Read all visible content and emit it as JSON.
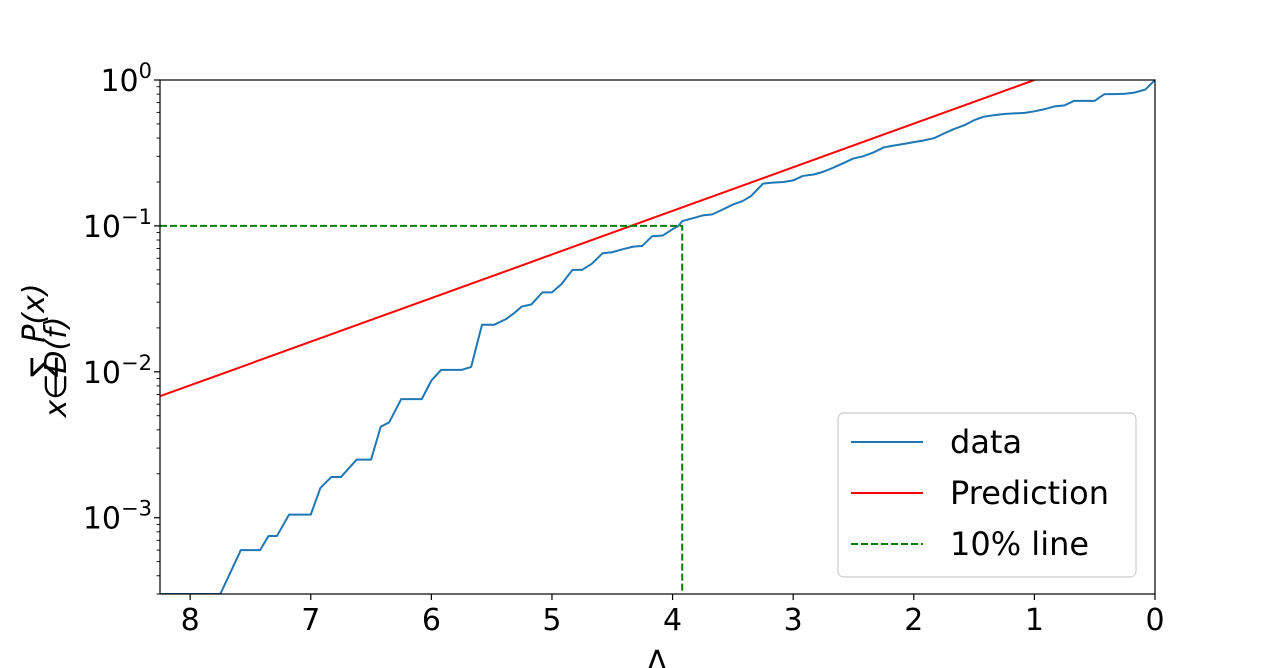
{
  "chart_data": {
    "type": "line",
    "x_axis": {
      "label": "Δ",
      "ticks": [
        "8",
        "7",
        "6",
        "5",
        "4",
        "3",
        "2",
        "1",
        "0"
      ],
      "tick_values": [
        8,
        7,
        6,
        5,
        4,
        3,
        2,
        1,
        0
      ],
      "range": [
        8.25,
        0
      ],
      "direction": "decreasing"
    },
    "y_axis": {
      "label_symbol": "∑",
      "label_sub": "x∈D(f)",
      "label_main": "P(x)",
      "scale": "log",
      "range": [
        0.0003,
        1
      ],
      "major_ticks": [
        {
          "base": "10",
          "exp": "0",
          "value": 1
        },
        {
          "base": "10",
          "exp": "−1",
          "value": 0.1
        },
        {
          "base": "10",
          "exp": "−2",
          "value": 0.01
        },
        {
          "base": "10",
          "exp": "−3",
          "value": 0.001
        }
      ]
    },
    "grid": false,
    "legend_position": "lower-right",
    "series": [
      {
        "name": "data",
        "color": "#1f77b4",
        "style": "solid",
        "points": [
          [
            8.25,
            0.0003
          ],
          [
            7.75,
            0.0003
          ],
          [
            7.65,
            0.00045
          ],
          [
            7.58,
            0.0006
          ],
          [
            7.42,
            0.0006
          ],
          [
            7.35,
            0.00075
          ],
          [
            7.28,
            0.00075
          ],
          [
            7.18,
            0.00105
          ],
          [
            7.0,
            0.00105
          ],
          [
            6.92,
            0.0016
          ],
          [
            6.83,
            0.0019
          ],
          [
            6.75,
            0.0019
          ],
          [
            6.62,
            0.0025
          ],
          [
            6.5,
            0.0025
          ],
          [
            6.42,
            0.0042
          ],
          [
            6.35,
            0.0045
          ],
          [
            6.25,
            0.0065
          ],
          [
            6.08,
            0.0065
          ],
          [
            6.0,
            0.0087
          ],
          [
            5.92,
            0.0103
          ],
          [
            5.75,
            0.0103
          ],
          [
            5.67,
            0.0108
          ],
          [
            5.58,
            0.021
          ],
          [
            5.48,
            0.021
          ],
          [
            5.38,
            0.023
          ],
          [
            5.32,
            0.025
          ],
          [
            5.25,
            0.028
          ],
          [
            5.17,
            0.029
          ],
          [
            5.08,
            0.035
          ],
          [
            5.0,
            0.035
          ],
          [
            4.92,
            0.04
          ],
          [
            4.83,
            0.05
          ],
          [
            4.75,
            0.05
          ],
          [
            4.67,
            0.055
          ],
          [
            4.58,
            0.065
          ],
          [
            4.5,
            0.066
          ],
          [
            4.42,
            0.069
          ],
          [
            4.33,
            0.072
          ],
          [
            4.25,
            0.073
          ],
          [
            4.17,
            0.085
          ],
          [
            4.08,
            0.086
          ],
          [
            4.0,
            0.095
          ],
          [
            3.95,
            0.1
          ],
          [
            3.92,
            0.108
          ],
          [
            3.83,
            0.113
          ],
          [
            3.75,
            0.118
          ],
          [
            3.67,
            0.12
          ],
          [
            3.58,
            0.13
          ],
          [
            3.5,
            0.14
          ],
          [
            3.42,
            0.148
          ],
          [
            3.35,
            0.16
          ],
          [
            3.25,
            0.195
          ],
          [
            3.17,
            0.198
          ],
          [
            3.08,
            0.2
          ],
          [
            3.0,
            0.205
          ],
          [
            2.92,
            0.22
          ],
          [
            2.83,
            0.225
          ],
          [
            2.75,
            0.235
          ],
          [
            2.67,
            0.25
          ],
          [
            2.58,
            0.27
          ],
          [
            2.5,
            0.29
          ],
          [
            2.42,
            0.3
          ],
          [
            2.33,
            0.32
          ],
          [
            2.25,
            0.345
          ],
          [
            2.17,
            0.355
          ],
          [
            2.08,
            0.365
          ],
          [
            2.0,
            0.375
          ],
          [
            1.92,
            0.385
          ],
          [
            1.83,
            0.4
          ],
          [
            1.75,
            0.43
          ],
          [
            1.67,
            0.46
          ],
          [
            1.58,
            0.49
          ],
          [
            1.5,
            0.53
          ],
          [
            1.42,
            0.56
          ],
          [
            1.33,
            0.575
          ],
          [
            1.25,
            0.585
          ],
          [
            1.17,
            0.59
          ],
          [
            1.08,
            0.595
          ],
          [
            1.0,
            0.61
          ],
          [
            0.92,
            0.63
          ],
          [
            0.83,
            0.66
          ],
          [
            0.75,
            0.67
          ],
          [
            0.67,
            0.72
          ],
          [
            0.58,
            0.72
          ],
          [
            0.5,
            0.72
          ],
          [
            0.42,
            0.8
          ],
          [
            0.33,
            0.8
          ],
          [
            0.25,
            0.805
          ],
          [
            0.17,
            0.82
          ],
          [
            0.08,
            0.86
          ],
          [
            0.0,
            1.0
          ]
        ]
      },
      {
        "name": "Prediction",
        "color": "#ff0000",
        "style": "solid",
        "points": [
          [
            8.25,
            0.0068
          ],
          [
            1.0,
            1.0
          ]
        ]
      },
      {
        "name": "10% line",
        "color": "#008000",
        "style": "dashed",
        "points": [
          [
            8.25,
            0.1
          ],
          [
            3.92,
            0.1
          ],
          [
            3.92,
            0.0003
          ]
        ]
      }
    ]
  }
}
